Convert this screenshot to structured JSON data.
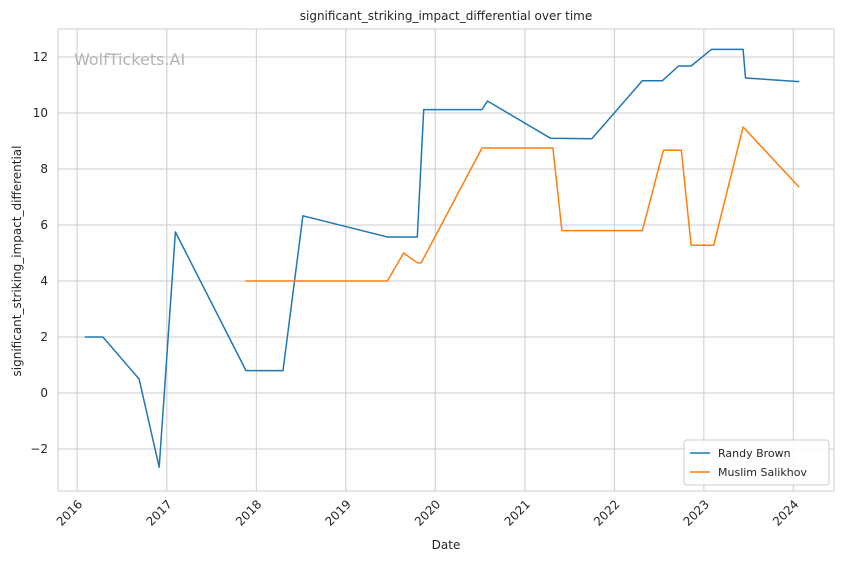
{
  "chart_data": {
    "type": "line",
    "title": "significant_striking_impact_differential over time",
    "xlabel": "Date",
    "ylabel": "significant_striking_impact_differential",
    "watermark": "WolfTickets.AI",
    "xlim": [
      "2015-10-15",
      "2024-06-15"
    ],
    "ylim": [
      -3.5,
      13.0
    ],
    "x_ticks": [
      "2016-01-01",
      "2017-01-01",
      "2018-01-01",
      "2019-01-01",
      "2020-01-01",
      "2021-01-01",
      "2022-01-01",
      "2023-01-01",
      "2024-01-01"
    ],
    "x_tick_labels": [
      "2016",
      "2017",
      "2018",
      "2019",
      "2020",
      "2021",
      "2022",
      "2023",
      "2024"
    ],
    "y_ticks": [
      -2,
      0,
      2,
      4,
      6,
      8,
      10,
      12
    ],
    "y_tick_labels": [
      "−2",
      "0",
      "2",
      "4",
      "6",
      "8",
      "10",
      "12"
    ],
    "grid": true,
    "legend_position": "bottom-right",
    "series": [
      {
        "name": "Randy Brown",
        "color": "#1f77b4",
        "points": [
          [
            "2016-02-01",
            2.0
          ],
          [
            "2016-04-15",
            2.0
          ],
          [
            "2016-09-10",
            0.5
          ],
          [
            "2016-12-01",
            -2.65
          ],
          [
            "2017-02-05",
            5.75
          ],
          [
            "2017-11-20",
            0.8
          ],
          [
            "2018-04-20",
            0.8
          ],
          [
            "2018-07-10",
            6.33
          ],
          [
            "2019-06-20",
            5.57
          ],
          [
            "2019-10-20",
            5.57
          ],
          [
            "2019-11-15",
            10.12
          ],
          [
            "2020-07-10",
            10.12
          ],
          [
            "2020-08-01",
            10.43
          ],
          [
            "2021-04-15",
            9.1
          ],
          [
            "2021-10-01",
            9.08
          ],
          [
            "2022-04-25",
            11.15
          ],
          [
            "2022-07-15",
            11.15
          ],
          [
            "2022-09-20",
            11.68
          ],
          [
            "2022-11-10",
            11.68
          ],
          [
            "2023-02-01",
            12.27
          ],
          [
            "2023-06-10",
            12.27
          ],
          [
            "2023-06-20",
            11.25
          ],
          [
            "2024-01-25",
            11.12
          ]
        ]
      },
      {
        "name": "Muslim Salikhov",
        "color": "#ff7f0e",
        "points": [
          [
            "2017-11-18",
            4.0
          ],
          [
            "2019-06-20",
            4.0
          ],
          [
            "2019-08-25",
            5.0
          ],
          [
            "2019-10-20",
            4.65
          ],
          [
            "2019-11-05",
            4.65
          ],
          [
            "2020-07-10",
            8.75
          ],
          [
            "2021-04-25",
            8.75
          ],
          [
            "2021-06-01",
            5.8
          ],
          [
            "2022-04-25",
            5.8
          ],
          [
            "2022-07-20",
            8.67
          ],
          [
            "2022-10-01",
            8.67
          ],
          [
            "2022-11-10",
            5.28
          ],
          [
            "2023-02-10",
            5.28
          ],
          [
            "2023-06-10",
            9.5
          ],
          [
            "2024-01-25",
            7.35
          ]
        ]
      }
    ]
  }
}
